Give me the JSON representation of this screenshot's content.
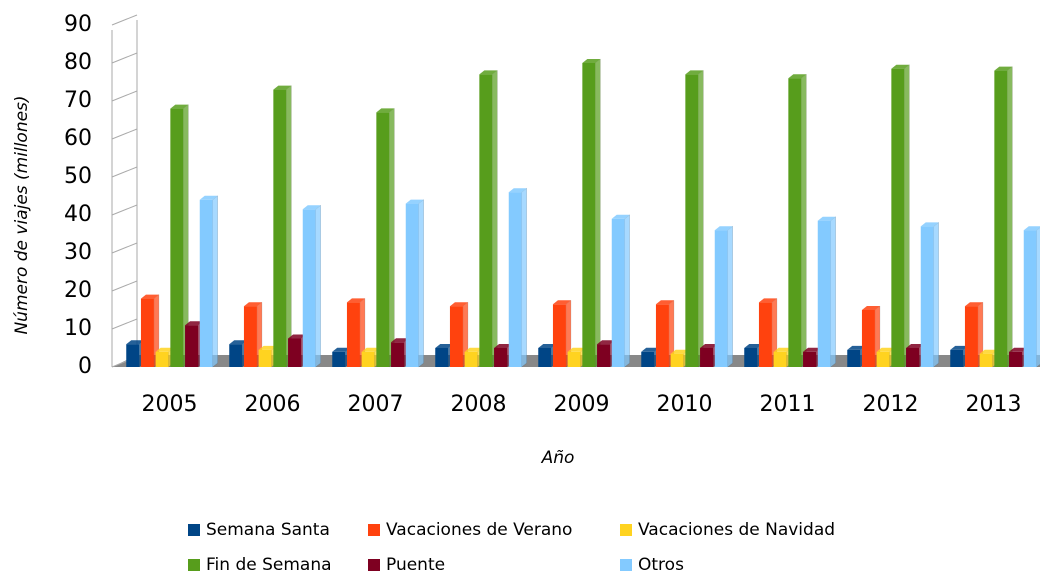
{
  "chart_data": {
    "type": "bar",
    "y_label": "Número de viajes (millones)",
    "x_label": "Año",
    "categories": [
      "2005",
      "2006",
      "2007",
      "2008",
      "2009",
      "2010",
      "2011",
      "2012",
      "2013"
    ],
    "series": [
      {
        "name": "Semana Santa",
        "color": "#004586",
        "values": [
          6,
          6,
          4,
          5,
          5,
          4,
          5,
          4.5,
          4.5
        ]
      },
      {
        "name": "Vacaciones de Verano",
        "color": "#ff420e",
        "values": [
          18,
          16,
          17,
          16,
          16.5,
          16.5,
          17,
          15,
          16
        ]
      },
      {
        "name": "Vacaciones de Navidad",
        "color": "#ffd320",
        "values": [
          4,
          4.5,
          4,
          4,
          4,
          3.5,
          4,
          4,
          3.5
        ]
      },
      {
        "name": "Fin de Semana",
        "color": "#579d1c",
        "values": [
          68,
          73,
          67,
          77,
          80,
          77,
          76,
          78.5,
          78
        ]
      },
      {
        "name": "Puente",
        "color": "#7e0021",
        "values": [
          11,
          7.5,
          6.5,
          5,
          6,
          5,
          4,
          5,
          4
        ]
      },
      {
        "name": "Otros",
        "color": "#83caff",
        "values": [
          44,
          41.5,
          43,
          46,
          39,
          36,
          38.5,
          37,
          36
        ]
      }
    ],
    "ylim": [
      0,
      90
    ],
    "yticks": [
      0,
      10,
      20,
      30,
      40,
      50,
      60,
      70,
      80,
      90
    ]
  }
}
